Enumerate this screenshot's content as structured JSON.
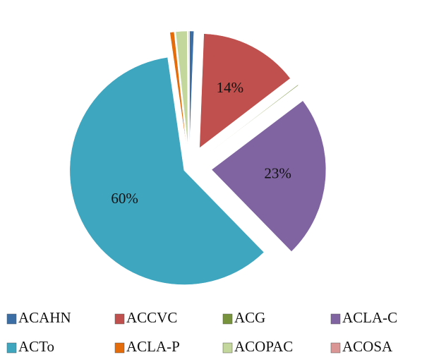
{
  "chart_data": {
    "type": "pie",
    "categories": [
      "ACAHN",
      "ACCVC",
      "ACG",
      "ACLA-C",
      "ACTo",
      "ACLA-P",
      "ACOPAC",
      "ACOSA"
    ],
    "values": [
      0.6,
      14,
      0.1,
      23,
      60,
      0.6,
      1.6,
      0.1
    ],
    "value_labels": [
      null,
      "14%",
      null,
      "23%",
      "60%",
      null,
      null,
      null
    ],
    "colors": [
      "#3b6ea5",
      "#c0504d",
      "#77933c",
      "#8064a2",
      "#3fa6c0",
      "#e46c0a",
      "#c3d69b",
      "#d99694"
    ],
    "legend": "bottom"
  }
}
